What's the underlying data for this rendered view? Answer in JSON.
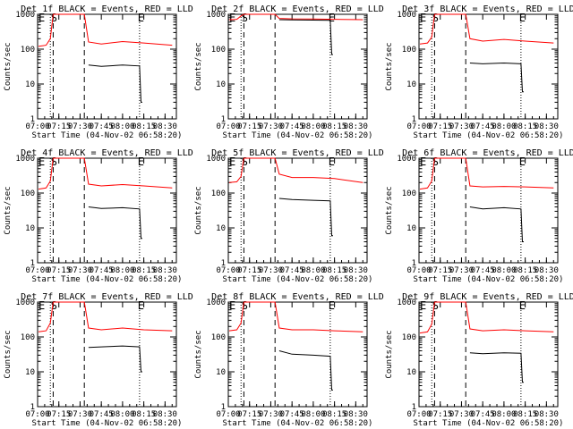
{
  "colors": {
    "events": "#000000",
    "lld": "#ff0000",
    "axes": "#000000",
    "background": "#ffffff"
  },
  "common": {
    "xlabel": "Start Time (04-Nov-02 06:58:20)",
    "ylabel": "Counts/sec",
    "x_tick_labels": [
      "07:00",
      "07:15",
      "07:30",
      "07:45",
      "08:00",
      "08:15",
      "08:30"
    ],
    "y_tick_labels": [
      "1",
      "10",
      "100",
      "1000"
    ],
    "markers": [
      {
        "label": "E",
        "time": "07:00"
      },
      {
        "label": "S",
        "time": "07:11"
      },
      {
        "label": "E",
        "time": "08:10"
      }
    ],
    "vlines": [
      {
        "time": "07:09",
        "style": "dotted"
      },
      {
        "time": "07:11",
        "style": "dashed"
      },
      {
        "time": "07:33",
        "style": "dashed"
      },
      {
        "time": "08:12",
        "style": "dotted"
      }
    ]
  },
  "chart_data": [
    {
      "type": "line",
      "title": "Det 1f BLACK = Events, RED = LLD",
      "yscale": "log",
      "xlim": [
        "07:00",
        "08:38"
      ],
      "ylim": [
        1,
        1000
      ],
      "series": [
        {
          "name": "LLD",
          "color": "#ff0000",
          "x": [
            "07:00",
            "07:06",
            "07:09",
            "07:11",
            "07:33",
            "07:36",
            "07:45",
            "08:00",
            "08:15",
            "08:35"
          ],
          "y": [
            120,
            130,
            200,
            1000,
            1000,
            160,
            140,
            165,
            150,
            130
          ]
        },
        {
          "name": "Events",
          "color": "#000000",
          "x": [
            "07:36",
            "07:45",
            "08:00",
            "08:12",
            "08:13",
            "08:14"
          ],
          "y": [
            35,
            32,
            35,
            33,
            3,
            3
          ]
        }
      ]
    },
    {
      "type": "line",
      "title": "Det 2f BLACK = Events, RED = LLD",
      "yscale": "log",
      "xlim": [
        "07:00",
        "08:38"
      ],
      "ylim": [
        1,
        1000
      ],
      "series": [
        {
          "name": "LLD",
          "color": "#ff0000",
          "x": [
            "07:00",
            "07:06",
            "07:09",
            "07:11",
            "07:33",
            "07:36",
            "07:45",
            "08:00",
            "08:15",
            "08:35"
          ],
          "y": [
            700,
            720,
            900,
            1000,
            1000,
            760,
            740,
            730,
            720,
            700
          ]
        },
        {
          "name": "Events",
          "color": "#000000",
          "x": [
            "07:36",
            "07:45",
            "08:00",
            "08:12",
            "08:13",
            "08:14"
          ],
          "y": [
            700,
            690,
            680,
            670,
            70,
            70
          ]
        }
      ]
    },
    {
      "type": "line",
      "title": "Det 3f BLACK = Events, RED = LLD",
      "yscale": "log",
      "xlim": [
        "07:00",
        "08:38"
      ],
      "ylim": [
        1,
        1000
      ],
      "series": [
        {
          "name": "LLD",
          "color": "#ff0000",
          "x": [
            "07:00",
            "07:06",
            "07:09",
            "07:11",
            "07:33",
            "07:36",
            "07:45",
            "08:00",
            "08:15",
            "08:35"
          ],
          "y": [
            140,
            150,
            220,
            1000,
            1000,
            200,
            170,
            190,
            170,
            150
          ]
        },
        {
          "name": "Events",
          "color": "#000000",
          "x": [
            "07:36",
            "07:45",
            "08:00",
            "08:12",
            "08:13",
            "08:14"
          ],
          "y": [
            40,
            38,
            40,
            38,
            6,
            6
          ]
        }
      ]
    },
    {
      "type": "line",
      "title": "Det 4f BLACK = Events, RED = LLD",
      "yscale": "log",
      "xlim": [
        "07:00",
        "08:38"
      ],
      "ylim": [
        1,
        1000
      ],
      "series": [
        {
          "name": "LLD",
          "color": "#ff0000",
          "x": [
            "07:00",
            "07:06",
            "07:09",
            "07:11",
            "07:33",
            "07:36",
            "07:45",
            "08:00",
            "08:15",
            "08:35"
          ],
          "y": [
            130,
            140,
            220,
            1000,
            1000,
            180,
            160,
            175,
            160,
            140
          ]
        },
        {
          "name": "Events",
          "color": "#000000",
          "x": [
            "07:36",
            "07:45",
            "08:00",
            "08:12",
            "08:13",
            "08:14"
          ],
          "y": [
            40,
            36,
            38,
            35,
            5,
            5
          ]
        }
      ]
    },
    {
      "type": "line",
      "title": "Det 5f BLACK = Events, RED = LLD",
      "yscale": "log",
      "xlim": [
        "07:00",
        "08:38"
      ],
      "ylim": [
        1,
        1000
      ],
      "series": [
        {
          "name": "LLD",
          "color": "#ff0000",
          "x": [
            "07:00",
            "07:06",
            "07:09",
            "07:11",
            "07:33",
            "07:36",
            "07:45",
            "08:00",
            "08:15",
            "08:35"
          ],
          "y": [
            200,
            210,
            300,
            1000,
            1000,
            350,
            280,
            280,
            260,
            200
          ]
        },
        {
          "name": "Events",
          "color": "#000000",
          "x": [
            "07:36",
            "07:45",
            "08:00",
            "08:12",
            "08:13",
            "08:14"
          ],
          "y": [
            70,
            65,
            62,
            60,
            6,
            6
          ]
        }
      ]
    },
    {
      "type": "line",
      "title": "Det 6f BLACK = Events, RED = LLD",
      "yscale": "log",
      "xlim": [
        "07:00",
        "08:38"
      ],
      "ylim": [
        1,
        1000
      ],
      "series": [
        {
          "name": "LLD",
          "color": "#ff0000",
          "x": [
            "07:00",
            "07:06",
            "07:09",
            "07:11",
            "07:33",
            "07:36",
            "07:45",
            "08:00",
            "08:15",
            "08:35"
          ],
          "y": [
            130,
            140,
            220,
            1000,
            1000,
            160,
            150,
            155,
            150,
            140
          ]
        },
        {
          "name": "Events",
          "color": "#000000",
          "x": [
            "07:36",
            "07:45",
            "08:00",
            "08:12",
            "08:13",
            "08:14"
          ],
          "y": [
            40,
            35,
            38,
            35,
            4,
            4
          ]
        }
      ]
    },
    {
      "type": "line",
      "title": "Det 7f BLACK = Events, RED = LLD",
      "yscale": "log",
      "xlim": [
        "07:00",
        "08:38"
      ],
      "ylim": [
        1,
        1000
      ],
      "series": [
        {
          "name": "LLD",
          "color": "#ff0000",
          "x": [
            "07:00",
            "07:06",
            "07:09",
            "07:11",
            "07:33",
            "07:36",
            "07:45",
            "08:00",
            "08:15",
            "08:35"
          ],
          "y": [
            140,
            150,
            250,
            1000,
            1000,
            180,
            160,
            180,
            160,
            150
          ]
        },
        {
          "name": "Events",
          "color": "#000000",
          "x": [
            "07:36",
            "07:45",
            "08:00",
            "08:12",
            "08:13",
            "08:14"
          ],
          "y": [
            50,
            52,
            55,
            52,
            10,
            10
          ]
        }
      ]
    },
    {
      "type": "line",
      "title": "Det 8f BLACK = Events, RED = LLD",
      "yscale": "log",
      "xlim": [
        "07:00",
        "08:38"
      ],
      "ylim": [
        1,
        1000
      ],
      "series": [
        {
          "name": "LLD",
          "color": "#ff0000",
          "x": [
            "07:00",
            "07:06",
            "07:09",
            "07:11",
            "07:33",
            "07:36",
            "07:45",
            "08:00",
            "08:15",
            "08:35"
          ],
          "y": [
            150,
            160,
            250,
            1000,
            1000,
            180,
            160,
            160,
            150,
            140
          ]
        },
        {
          "name": "Events",
          "color": "#000000",
          "x": [
            "07:36",
            "07:45",
            "08:00",
            "08:12",
            "08:13",
            "08:14"
          ],
          "y": [
            40,
            32,
            30,
            28,
            3,
            3
          ]
        }
      ]
    },
    {
      "type": "line",
      "title": "Det 9f BLACK = Events, RED = LLD",
      "yscale": "log",
      "xlim": [
        "07:00",
        "08:38"
      ],
      "ylim": [
        1,
        1000
      ],
      "series": [
        {
          "name": "LLD",
          "color": "#ff0000",
          "x": [
            "07:00",
            "07:06",
            "07:09",
            "07:11",
            "07:33",
            "07:36",
            "07:45",
            "08:00",
            "08:15",
            "08:35"
          ],
          "y": [
            130,
            140,
            230,
            1000,
            1000,
            170,
            150,
            160,
            150,
            140
          ]
        },
        {
          "name": "Events",
          "color": "#000000",
          "x": [
            "07:36",
            "07:45",
            "08:00",
            "08:12",
            "08:13",
            "08:14"
          ],
          "y": [
            35,
            33,
            35,
            34,
            5,
            5
          ]
        }
      ]
    }
  ]
}
